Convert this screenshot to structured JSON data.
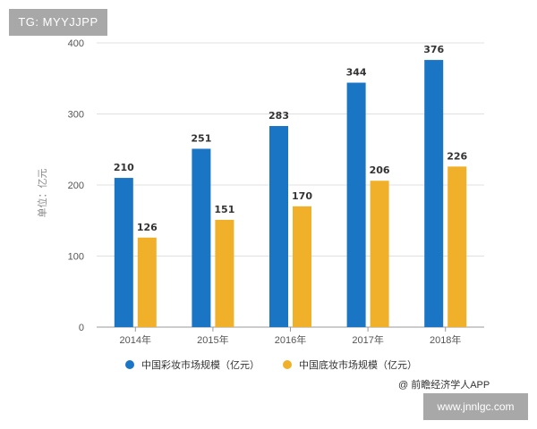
{
  "badges": {
    "tag": "TG: MYYJJPP",
    "url": "www.jnnlgc.com"
  },
  "source": "@ 前瞻经济学人APP",
  "colors": {
    "series1": "#1a75c5",
    "series2": "#f0b02a",
    "grid": "#e0e0e0",
    "axis": "#999999"
  },
  "chart_data": {
    "type": "bar",
    "title": "",
    "xlabel": "",
    "ylabel": "单位：亿元",
    "ylim": [
      0,
      400
    ],
    "yticks": [
      0,
      100,
      200,
      300,
      400
    ],
    "grid": true,
    "legend_position": "bottom",
    "categories": [
      "2014年",
      "2015年",
      "2016年",
      "2017年",
      "2018年"
    ],
    "series": [
      {
        "name": "中国彩妆市场规模（亿元）",
        "values": [
          210,
          251,
          283,
          344,
          376
        ],
        "color": "#1a75c5"
      },
      {
        "name": "中国底妆市场规模（亿元）",
        "values": [
          126,
          151,
          170,
          206,
          226
        ],
        "color": "#f0b02a"
      }
    ]
  },
  "legend": {
    "items": [
      {
        "label": "中国彩妆市场规模（亿元）"
      },
      {
        "label": "中国底妆市场规模（亿元）"
      }
    ]
  }
}
